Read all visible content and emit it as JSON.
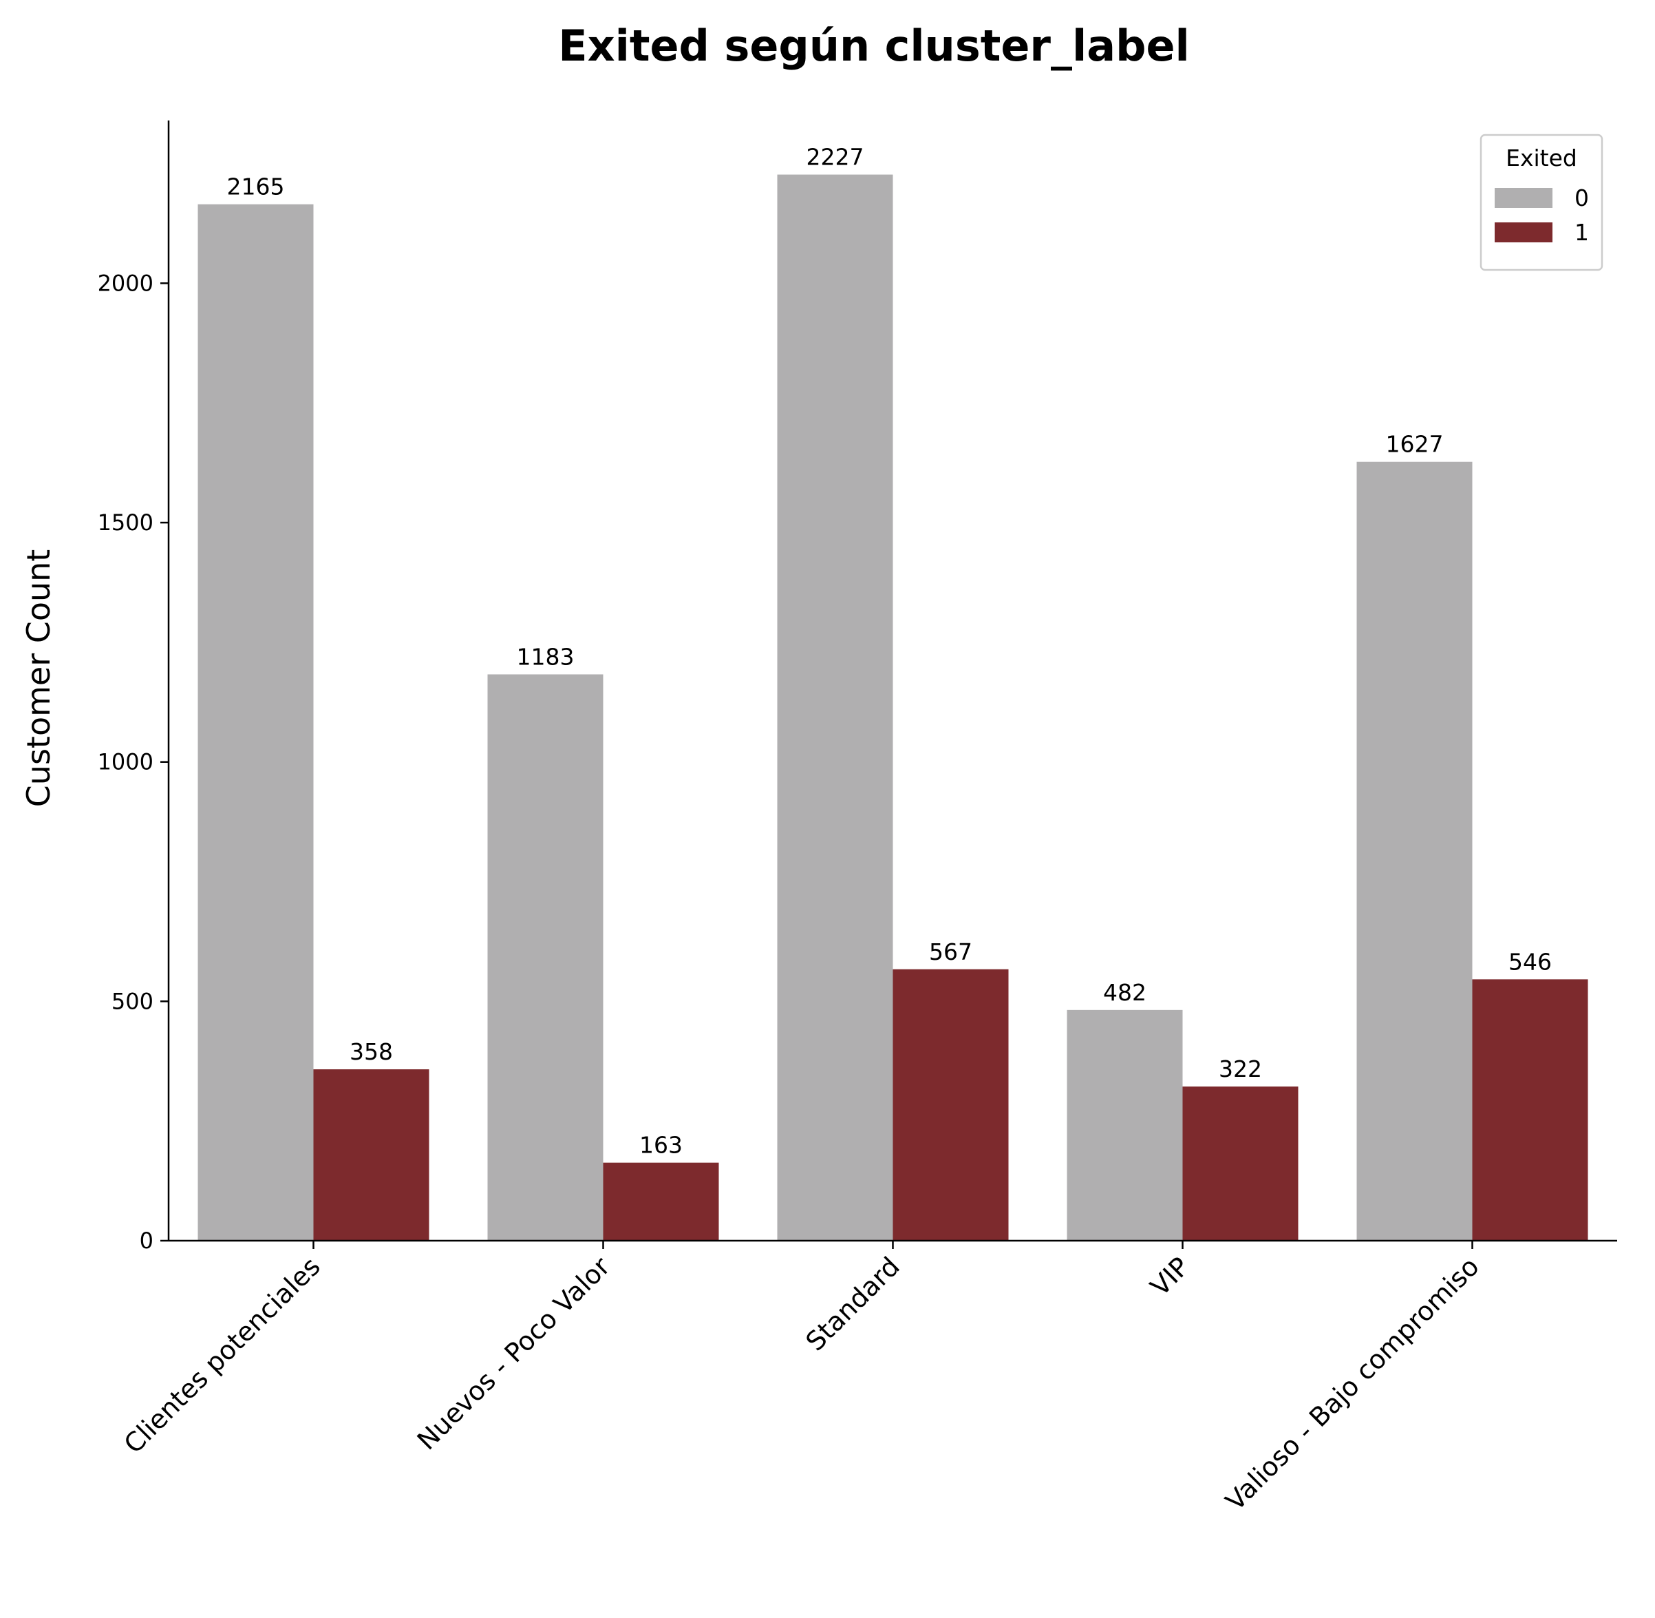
{
  "chart_data": {
    "type": "bar",
    "title": "Exited según cluster_label",
    "xlabel": "",
    "ylabel": "Customer Count",
    "categories": [
      "Clientes potenciales",
      "Nuevos - Poco Valor",
      "Standard",
      "VIP",
      "Valioso - Bajo compromiso"
    ],
    "series": [
      {
        "name": "0",
        "color": "#b0afb0",
        "values": [
          2165,
          1183,
          2227,
          482,
          1627
        ]
      },
      {
        "name": "1",
        "color": "#7d2a2d",
        "values": [
          358,
          163,
          567,
          322,
          546
        ]
      }
    ],
    "ylim": [
      0,
      2340
    ],
    "yticks": [
      0,
      500,
      1000,
      1500,
      2000
    ],
    "grid": false,
    "legend": {
      "title": "Exited",
      "placement": "top-right"
    }
  }
}
